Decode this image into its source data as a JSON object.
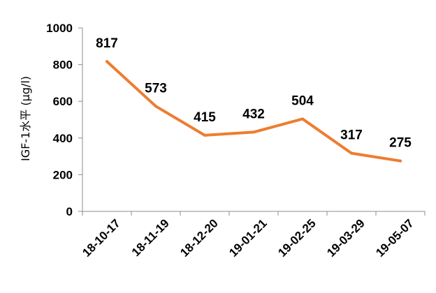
{
  "chart_data": {
    "type": "line",
    "ylabel": "IGF-1水平 (μg/l)",
    "xlabel": "",
    "ylim": [
      0,
      1000
    ],
    "yticks": [
      0,
      200,
      400,
      600,
      800,
      1000
    ],
    "grid": false,
    "legend": "none",
    "categories": [
      "18-10-17",
      "18-11-19",
      "18-12-20",
      "19-01-21",
      "19-02-25",
      "19-03-29",
      "19-05-07"
    ],
    "series": [
      {
        "values": [
          817,
          573,
          415,
          432,
          504,
          317,
          275
        ],
        "color": "#ED7D31"
      }
    ],
    "data_labels": [
      "817",
      "573",
      "415",
      "432",
      "504",
      "317",
      "275"
    ]
  }
}
